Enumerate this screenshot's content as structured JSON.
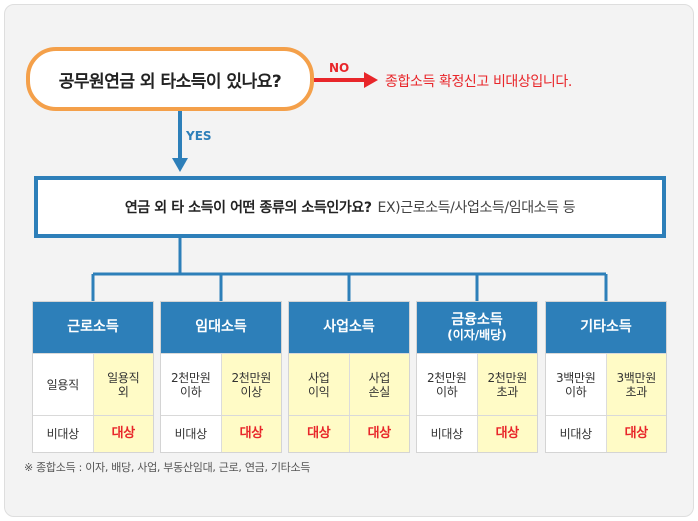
{
  "question1": "공무원연금 외 타소득이 있나요?",
  "no_label": "NO",
  "no_result": "종합소득 확정신고 비대상입니다.",
  "yes_label": "YES",
  "question2": {
    "main": "연금 외 타 소득이 어떤 종류의 소득인가요?",
    "example": "EX)근로소득/사업소득/임대소득 등"
  },
  "columns": [
    {
      "title": "근로소득",
      "subtitle": "",
      "left_condition": "일용직",
      "right_condition": "일용직\n외",
      "left_result": "비대상",
      "right_result": "대상"
    },
    {
      "title": "임대소득",
      "subtitle": "",
      "left_condition": "2천만원\n이하",
      "right_condition": "2천만원\n이상",
      "left_result": "비대상",
      "right_result": "대상"
    },
    {
      "title": "사업소득",
      "subtitle": "",
      "left_condition": "사업\n이익",
      "right_condition": "사업\n손실",
      "left_result": "대상",
      "right_result": "대상"
    },
    {
      "title": "금융소득",
      "subtitle": "(이자/배당)",
      "left_condition": "2천만원\n이하",
      "right_condition": "2천만원\n초과",
      "left_result": "비대상",
      "right_result": "대상"
    },
    {
      "title": "기타소득",
      "subtitle": "",
      "left_condition": "3백만원\n이하",
      "right_condition": "3백만원\n초과",
      "left_result": "비대상",
      "right_result": "대상"
    }
  ],
  "footnote": "※ 종합소득 : 이자, 배당, 사업, 부동산임대, 근로, 연금, 기타소득",
  "colors": {
    "orange": "#f4a04a",
    "blue": "#2d7fb9",
    "red": "#e8262a",
    "yellow": "#fffbc6"
  }
}
